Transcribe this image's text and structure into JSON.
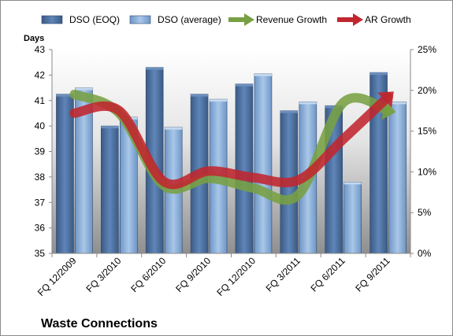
{
  "chart_data": {
    "type": "bar",
    "title": "Waste Connections",
    "ylabel": "Days",
    "categories": [
      "FQ 12/2009",
      "FQ 3/2010",
      "FQ 6/2010",
      "FQ 9/2010",
      "FQ 12/2010",
      "FQ 3/2011",
      "FQ 6/2011",
      "FQ 9/2011"
    ],
    "ylim": [
      35,
      43
    ],
    "y2lim": [
      0,
      25
    ],
    "yticks": [
      "35",
      "36",
      "37",
      "38",
      "39",
      "40",
      "41",
      "42",
      "43"
    ],
    "y2ticks": [
      "0%",
      "5%",
      "10%",
      "15%",
      "20%",
      "25%"
    ],
    "series": [
      {
        "name": "DSO (EOQ)",
        "type": "bar",
        "axis": "left",
        "color": "#4a6fa0",
        "values": [
          41.25,
          40.0,
          42.3,
          41.25,
          41.65,
          40.6,
          40.8,
          42.1
        ]
      },
      {
        "name": "DSO (average)",
        "type": "bar",
        "axis": "left",
        "color": "#8fb1d9",
        "values": [
          41.5,
          40.35,
          39.95,
          41.05,
          42.05,
          40.95,
          37.8,
          40.95
        ]
      },
      {
        "name": "Revenue Growth",
        "type": "line",
        "axis": "right",
        "color": "#77a043",
        "unit": "%",
        "values": [
          19.5,
          17.2,
          8.3,
          9.2,
          8.0,
          7.2,
          18.5,
          17.5
        ]
      },
      {
        "name": "AR Growth",
        "type": "line",
        "axis": "right",
        "color": "#c0262e",
        "unit": "%",
        "values": [
          17.2,
          17.5,
          8.8,
          10.1,
          9.3,
          9.0,
          14.0,
          19.2
        ]
      }
    ],
    "legend": "top",
    "grid": false
  }
}
